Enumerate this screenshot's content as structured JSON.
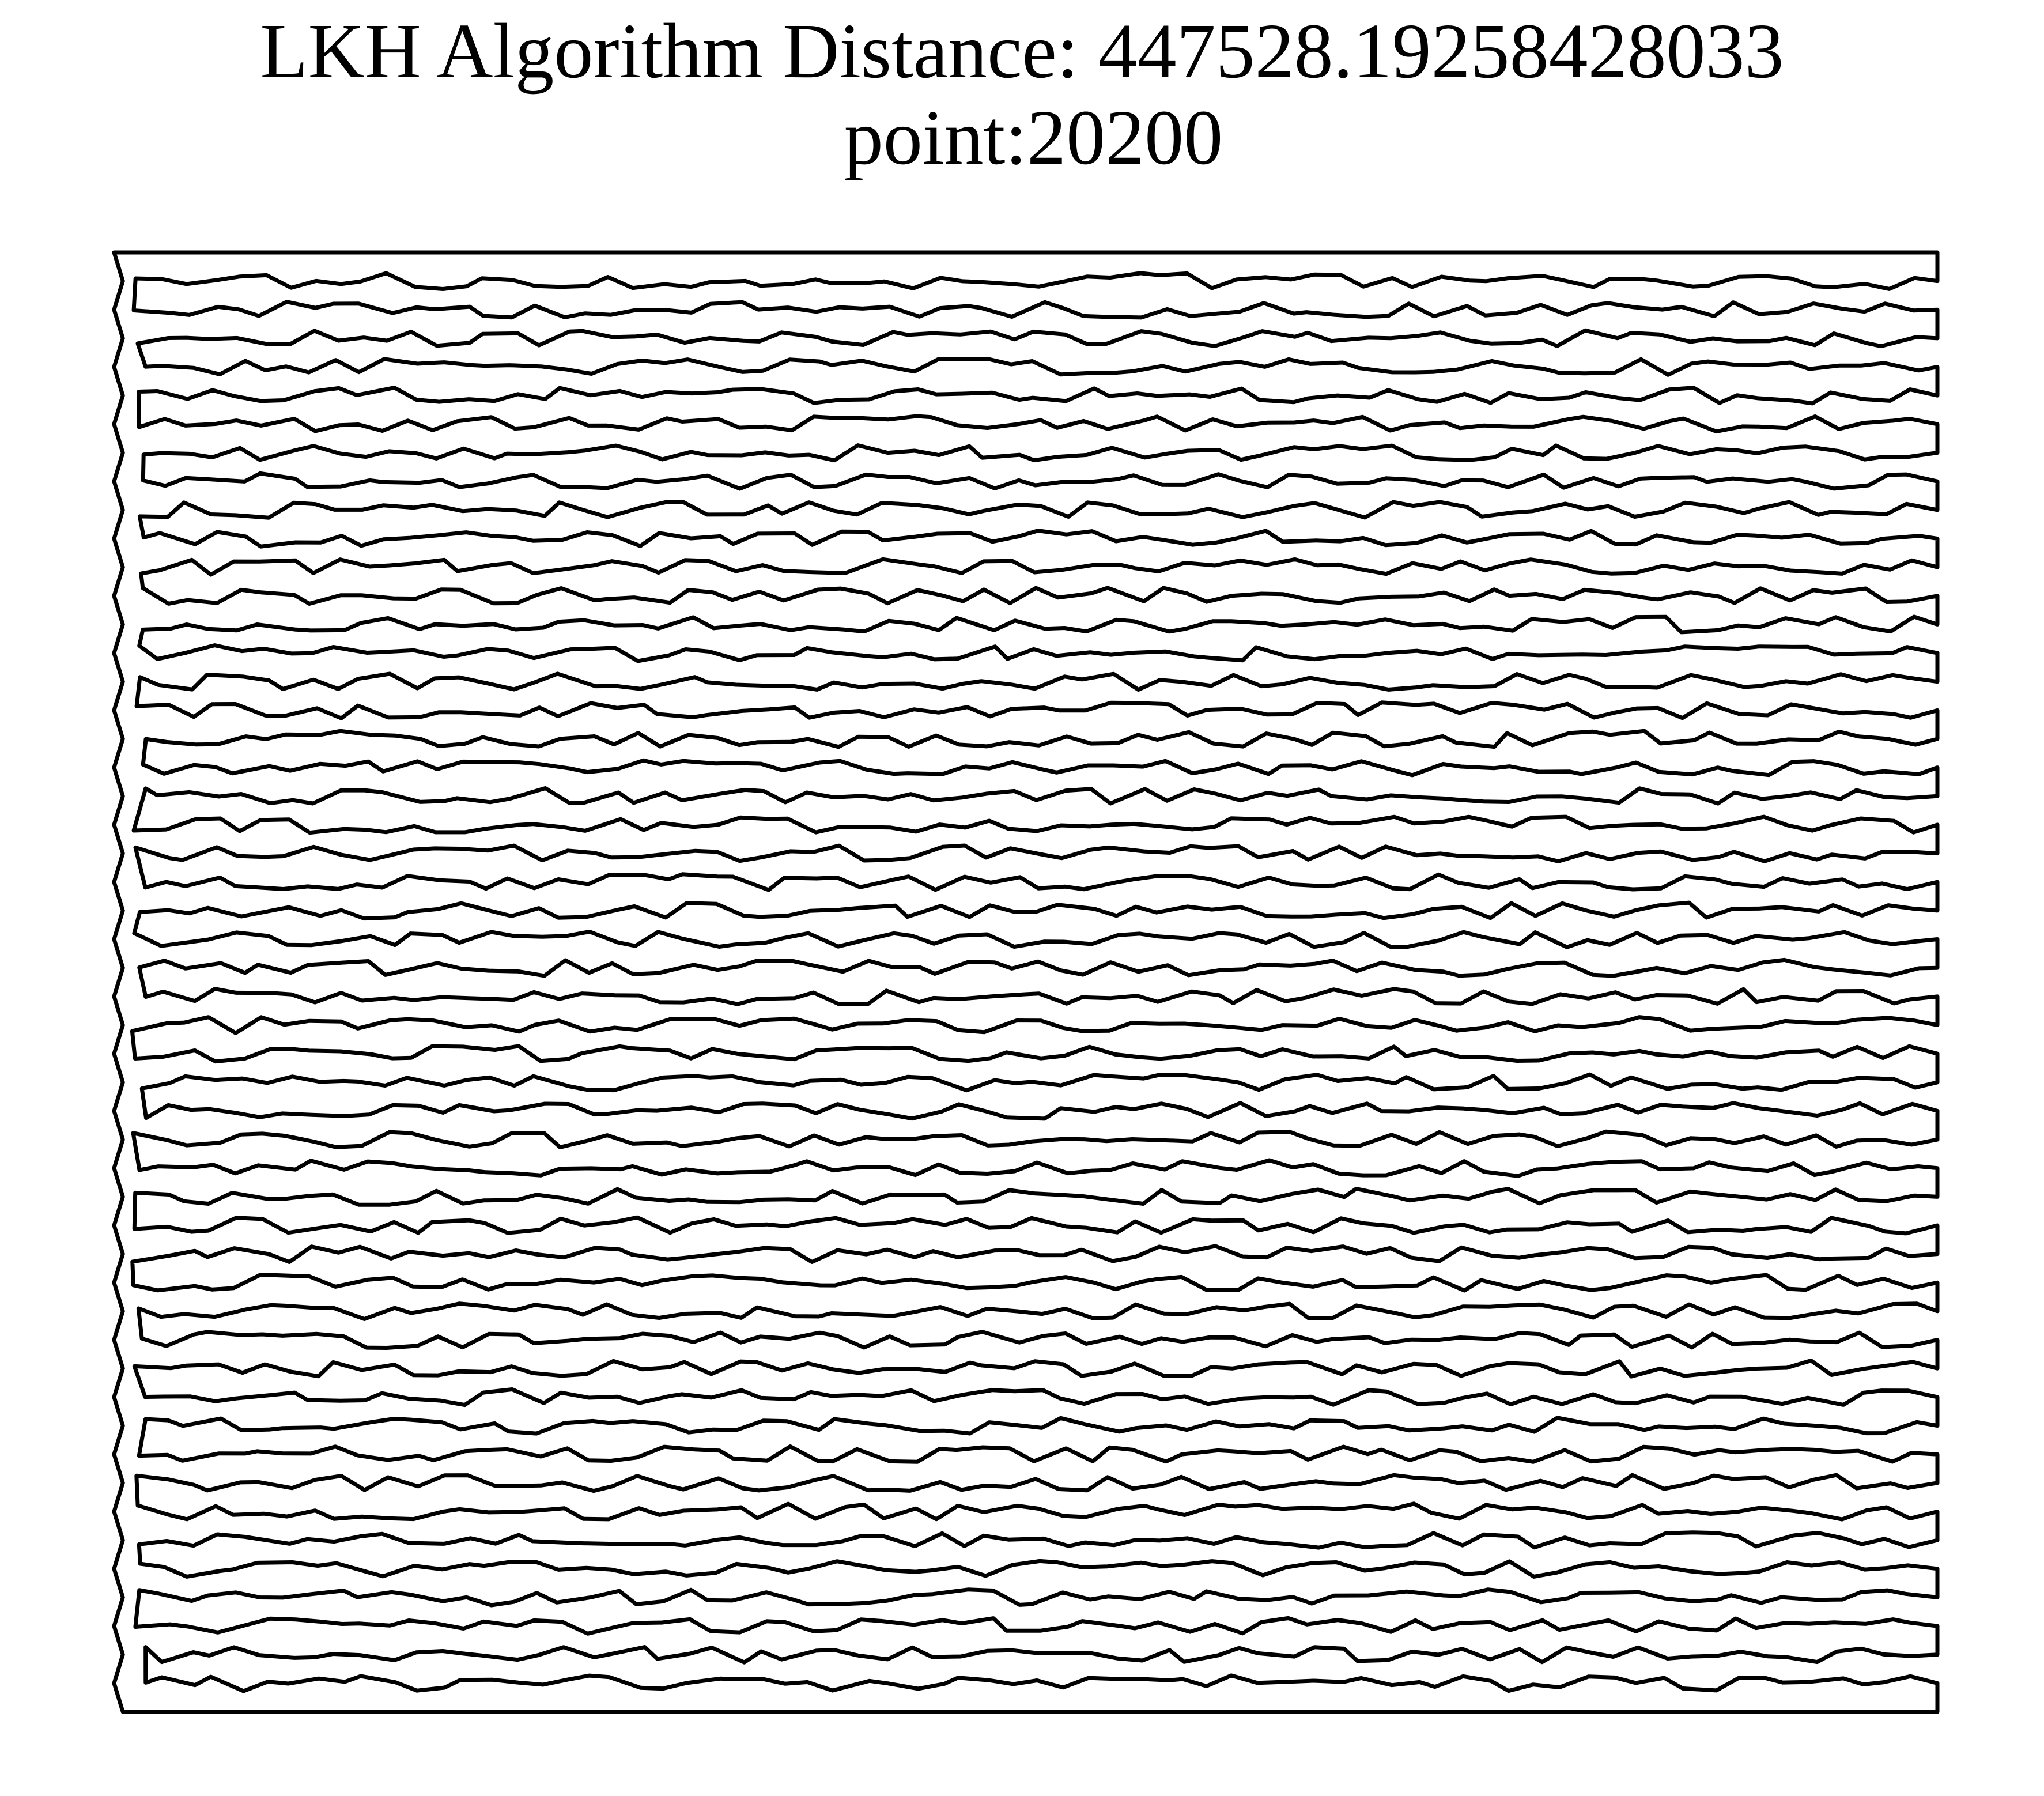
{
  "figure": {
    "title_line1": "LKH Algorithm Distance: 447528.19258428033",
    "title_line2": "point:20200",
    "stroke_color": "#000000",
    "background_color": "#ffffff"
  }
}
